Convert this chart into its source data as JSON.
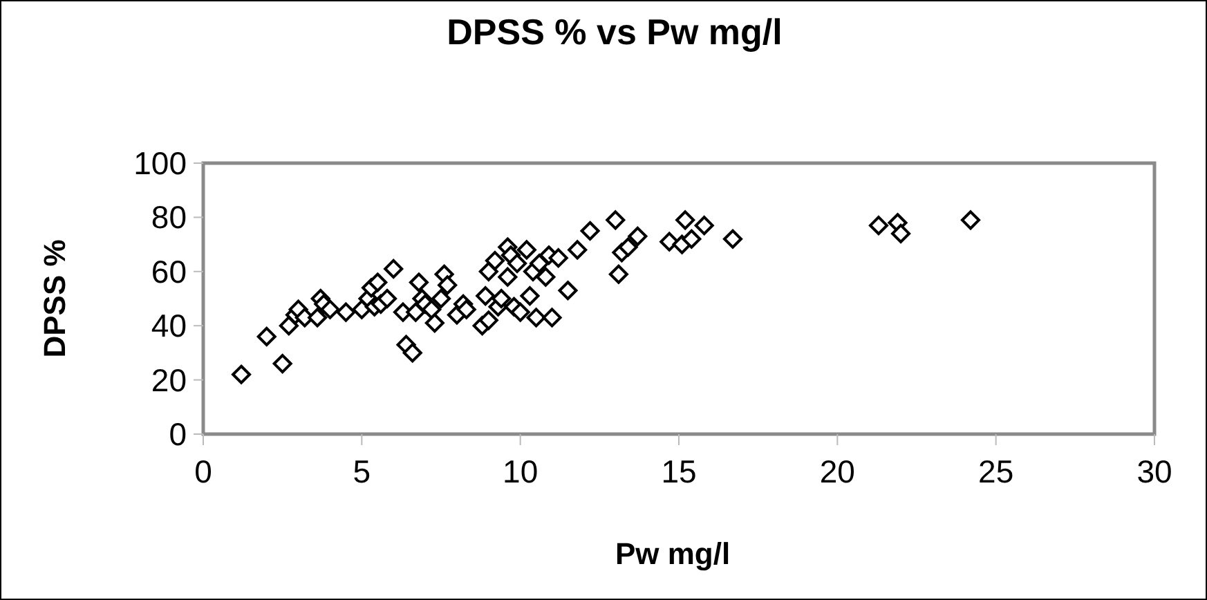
{
  "chart_data": {
    "type": "scatter",
    "title": "DPSS % vs Pw mg/l",
    "xlabel": "Pw mg/l",
    "ylabel": "DPSS %",
    "x": [
      1.2,
      2.0,
      2.5,
      2.7,
      2.9,
      3.0,
      3.2,
      3.6,
      3.7,
      3.8,
      4.0,
      4.5,
      5.0,
      5.2,
      5.3,
      5.4,
      5.5,
      5.6,
      5.8,
      6.0,
      6.3,
      6.4,
      6.6,
      6.7,
      6.8,
      6.9,
      7.0,
      7.2,
      7.3,
      7.5,
      7.6,
      7.7,
      8.0,
      8.2,
      8.3,
      8.8,
      8.9,
      9.0,
      9.0,
      9.2,
      9.3,
      9.4,
      9.6,
      9.6,
      9.7,
      9.8,
      9.9,
      10.0,
      10.2,
      10.3,
      10.4,
      10.5,
      10.6,
      10.8,
      10.9,
      11.0,
      11.2,
      11.5,
      11.8,
      12.2,
      13.0,
      13.1,
      13.2,
      13.4,
      13.7,
      14.7,
      15.1,
      15.2,
      15.4,
      15.8,
      16.7,
      21.3,
      21.9,
      22.0,
      24.2
    ],
    "values": [
      22,
      36,
      26,
      40,
      44,
      46,
      43,
      43,
      50,
      48,
      46,
      45,
      46,
      50,
      54,
      47,
      56,
      48,
      50,
      61,
      45,
      33,
      30,
      45,
      56,
      50,
      48,
      46,
      41,
      50,
      59,
      55,
      44,
      48,
      46,
      40,
      51,
      42,
      60,
      64,
      47,
      50,
      69,
      58,
      66,
      47,
      63,
      45,
      68,
      51,
      60,
      43,
      63,
      58,
      66,
      43,
      65,
      53,
      68,
      75,
      79,
      59,
      67,
      69,
      73,
      71,
      70,
      79,
      72,
      77,
      72,
      77,
      78,
      74,
      79
    ],
    "color": "#000000",
    "marker": "diamond",
    "xlim": [
      0,
      30
    ],
    "xticks": [
      0,
      5,
      10,
      15,
      20,
      25,
      30
    ],
    "ylim": [
      0,
      100
    ],
    "yticks": [
      0,
      20,
      40,
      60,
      80,
      100
    ],
    "grid": false
  }
}
